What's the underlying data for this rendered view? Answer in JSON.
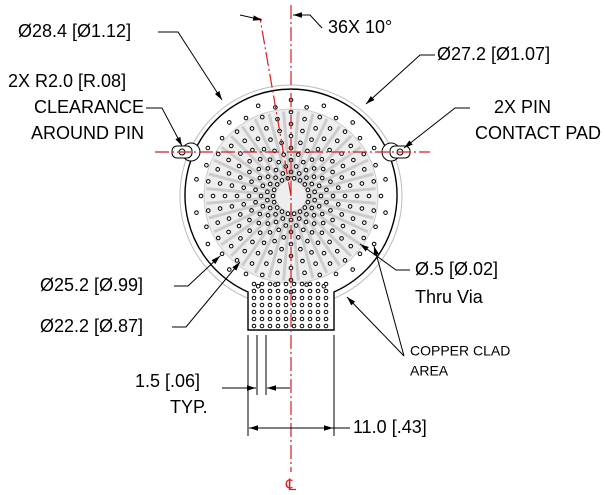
{
  "callouts": [
    {
      "lines": [
        "Ø28.4 [Ø1.12]"
      ]
    },
    {
      "lines": [
        "36X 10°"
      ]
    },
    {
      "lines": [
        "Ø27.2 [Ø1.07]"
      ]
    },
    {
      "lines": [
        "2X R2.0 [R.08]",
        "CLEARANCE",
        "AROUND PIN"
      ]
    },
    {
      "lines": [
        "2X PIN",
        "CONTACT PAD"
      ]
    },
    {
      "lines": [
        "Ø25.2 [Ø.99]"
      ]
    },
    {
      "lines": [
        "Ø.5 [Ø.02]",
        "Thru Via"
      ]
    },
    {
      "lines": [
        "Ø22.2 [Ø.87]"
      ]
    },
    {
      "lines": [
        "COPPER CLAD",
        "AREA"
      ]
    },
    {
      "lines": [
        "1.5 [.06]",
        "TYP."
      ]
    },
    {
      "lines": [
        "11.0 [.43]"
      ]
    }
  ],
  "centerline_symbol": "℄"
}
